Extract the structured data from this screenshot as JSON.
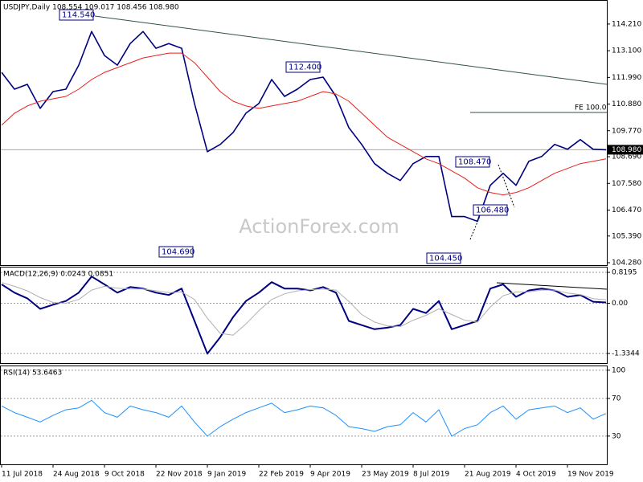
{
  "chart_data": [
    {
      "type": "line",
      "title": "USDJPY,Daily  108.554 109.017 108.456 108.980",
      "series": [
        {
          "color": "#000080",
          "values": [
            112.2,
            111.5,
            111.7,
            110.7,
            111.4,
            111.5,
            112.5,
            113.9,
            112.9,
            112.5,
            113.4,
            113.9,
            113.2,
            113.4,
            113.2,
            110.9,
            108.9,
            109.2,
            109.7,
            110.5,
            110.9,
            111.9,
            111.2,
            111.5,
            111.9,
            112.0,
            111.2,
            109.9,
            109.2,
            108.4,
            108.0,
            107.7,
            108.4,
            108.7,
            108.7,
            106.2,
            106.2,
            106.0,
            107.5,
            108.0,
            107.5,
            108.5,
            108.7,
            109.2,
            109.0,
            109.4,
            109.0,
            108.98
          ]
        },
        {
          "color": "#e8201c",
          "values": [
            110.0,
            110.5,
            110.8,
            111.0,
            111.1,
            111.2,
            111.5,
            111.9,
            112.2,
            112.4,
            112.6,
            112.8,
            112.9,
            113.0,
            113.0,
            112.6,
            112.0,
            111.4,
            111.0,
            110.8,
            110.7,
            110.8,
            110.9,
            111.0,
            111.2,
            111.4,
            111.3,
            111.0,
            110.5,
            110.0,
            109.5,
            109.2,
            108.9,
            108.6,
            108.4,
            108.1,
            107.8,
            107.4,
            107.2,
            107.1,
            107.2,
            107.4,
            107.7,
            108.0,
            108.2,
            108.4,
            108.5,
            108.6
          ]
        }
      ],
      "ylim": [
        104.18,
        115.21
      ],
      "yticks": [
        {
          "value": 114.21,
          "label": "114.210"
        },
        {
          "value": 113.1,
          "label": "113.100"
        },
        {
          "value": 111.99,
          "label": "111.990"
        },
        {
          "value": 110.88,
          "label": "110.880"
        },
        {
          "value": 109.77,
          "label": "109.770"
        },
        {
          "value": 108.69,
          "label": "108.690"
        },
        {
          "value": 107.58,
          "label": "107.580"
        },
        {
          "value": 106.47,
          "label": "106.470"
        },
        {
          "value": 105.39,
          "label": "105.390"
        },
        {
          "value": 104.28,
          "label": "104.280"
        }
      ],
      "last_price": {
        "value": 108.98,
        "label": "108.980"
      },
      "annotations": [
        "114.540",
        "104.690",
        "112.400",
        "108.470",
        "106.480",
        "104.450"
      ],
      "fe_label": "FE 100.0",
      "watermark": "ActionForex.com",
      "grid": false
    },
    {
      "type": "line",
      "title": "MACD(12,26,9) 0.0243 0.0851",
      "series": [
        {
          "color": "#000080",
          "values": [
            0.5,
            0.28,
            0.13,
            -0.15,
            -0.04,
            0.06,
            0.28,
            0.71,
            0.5,
            0.28,
            0.43,
            0.39,
            0.28,
            0.22,
            0.39,
            -0.47,
            -1.34,
            -0.9,
            -0.37,
            0.06,
            0.28,
            0.56,
            0.39,
            0.39,
            0.34,
            0.43,
            0.28,
            -0.47,
            -0.58,
            -0.69,
            -0.65,
            -0.58,
            -0.15,
            -0.26,
            0.06,
            -0.69,
            -0.58,
            -0.47,
            0.39,
            0.5,
            0.17,
            0.34,
            0.39,
            0.34,
            0.17,
            0.22,
            0.04,
            0.02
          ]
        },
        {
          "color": "#b0b0b0",
          "values": [
            0.55,
            0.45,
            0.33,
            0.15,
            0.02,
            0.0,
            0.1,
            0.35,
            0.45,
            0.4,
            0.38,
            0.38,
            0.33,
            0.28,
            0.3,
            0.1,
            -0.4,
            -0.8,
            -0.85,
            -0.55,
            -0.2,
            0.1,
            0.25,
            0.33,
            0.36,
            0.38,
            0.35,
            0.05,
            -0.3,
            -0.5,
            -0.6,
            -0.62,
            -0.45,
            -0.32,
            -0.15,
            -0.3,
            -0.45,
            -0.5,
            -0.1,
            0.2,
            0.3,
            0.3,
            0.35,
            0.35,
            0.27,
            0.23,
            0.12,
            0.09
          ]
        }
      ],
      "ylim": [
        -1.59,
        0.97
      ],
      "yticks": [
        0.8195,
        {
          "value": 0,
          "label": "0.00"
        },
        -1.3344
      ],
      "grid": true
    },
    {
      "type": "line",
      "title": "RSI(14) 53.6463",
      "categories": [
        "11 Jul 2018",
        null,
        null,
        null,
        "24 Aug 2018",
        null,
        null,
        null,
        "9 Oct 2018",
        null,
        null,
        null,
        "22 Nov 2018",
        null,
        null,
        null,
        "9 Jan 2019",
        null,
        null,
        null,
        "22 Feb 2019",
        null,
        null,
        null,
        "9 Apr 2019",
        null,
        null,
        null,
        "23 May 2019",
        null,
        null,
        null,
        "8 Jul 2019",
        null,
        null,
        null,
        "21 Aug 2019",
        null,
        null,
        null,
        "4 Oct 2019",
        null,
        null,
        null,
        "19 Nov 2019",
        null,
        null,
        null
      ],
      "series": [
        {
          "color": "#1e90ff",
          "values": [
            62,
            55,
            50,
            45,
            52,
            58,
            60,
            68,
            55,
            50,
            62,
            58,
            55,
            50,
            62,
            45,
            30,
            40,
            48,
            55,
            60,
            65,
            55,
            58,
            62,
            60,
            52,
            40,
            38,
            35,
            40,
            42,
            55,
            45,
            58,
            30,
            38,
            42,
            55,
            62,
            48,
            58,
            60,
            62,
            55,
            60,
            48,
            54
          ]
        }
      ],
      "ylim": [
        0,
        105
      ],
      "yticks": [
        100,
        70,
        30
      ],
      "grid": true
    }
  ]
}
